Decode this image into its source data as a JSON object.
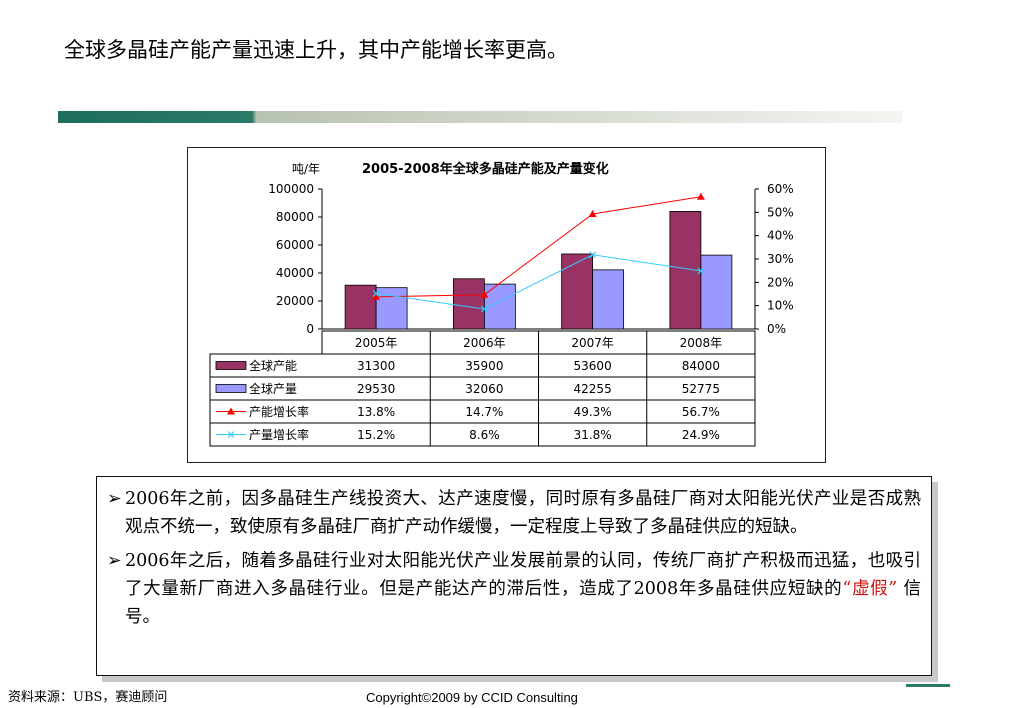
{
  "page": {
    "title": "全球多晶硅产能产量迅速上升，其中产能增长率更高。",
    "source": "资料来源：UBS，赛迪顾问",
    "copyright": "Copyright©2009 by CCID Consulting"
  },
  "notes": {
    "bullet_symbol": "➢",
    "p1": "2006年之前，因多晶硅生产线投资大、达产速度慢，同时原有多晶硅厂商对太阳能光伏产业是否成熟观点不统一，致使原有多晶硅厂商扩产动作缓慢，一定程度上导致了多晶硅供应的短缺。",
    "p2_pre": "2006年之后，随着多晶硅行业对太阳能光伏产业发展前景的认同，传统厂商扩产积极而迅猛，也吸引了大量新厂商进入多晶硅行业。但是产能达产的滞后性，造成了2008年多晶硅供应短缺的",
    "p2_em": "“虚假”",
    "p2_post": "  信号。"
  },
  "chart_data": {
    "type": "bar",
    "title": "2005-2008年全球多晶硅产能及产量变化",
    "ylabel": "吨/年",
    "categories": [
      "2005年",
      "2006年",
      "2007年",
      "2008年"
    ],
    "ylim": [
      0,
      100000
    ],
    "y_ticks": [
      "100000",
      "80000",
      "60000",
      "40000",
      "20000",
      "0"
    ],
    "y2lim": [
      0,
      60
    ],
    "y2_ticks": [
      "60%",
      "50%",
      "40%",
      "30%",
      "20%",
      "10%",
      "0%"
    ],
    "series": [
      {
        "name": "全球产能",
        "kind": "bar",
        "color": "#993366",
        "values": [
          31300,
          35900,
          53600,
          84000
        ],
        "labels": [
          "31300",
          "35900",
          "53600",
          "84000"
        ]
      },
      {
        "name": "全球产量",
        "kind": "bar",
        "color": "#9999ff",
        "values": [
          29530,
          32060,
          42255,
          52775
        ],
        "labels": [
          "29530",
          "32060",
          "42255",
          "52775"
        ]
      },
      {
        "name": "产能增长率",
        "kind": "line",
        "axis": "right",
        "color": "#ff0000",
        "marker": "▲",
        "values": [
          13.8,
          14.7,
          49.3,
          56.7
        ],
        "labels": [
          "13.8%",
          "14.7%",
          "49.3%",
          "56.7%"
        ]
      },
      {
        "name": "产量增长率",
        "kind": "line",
        "axis": "right",
        "color": "#33ccff",
        "marker": "×",
        "values": [
          15.2,
          8.6,
          31.8,
          24.9
        ],
        "labels": [
          "15.2%",
          "8.6%",
          "31.8%",
          "24.9%"
        ]
      }
    ],
    "grid": false,
    "legend": "data-table"
  }
}
